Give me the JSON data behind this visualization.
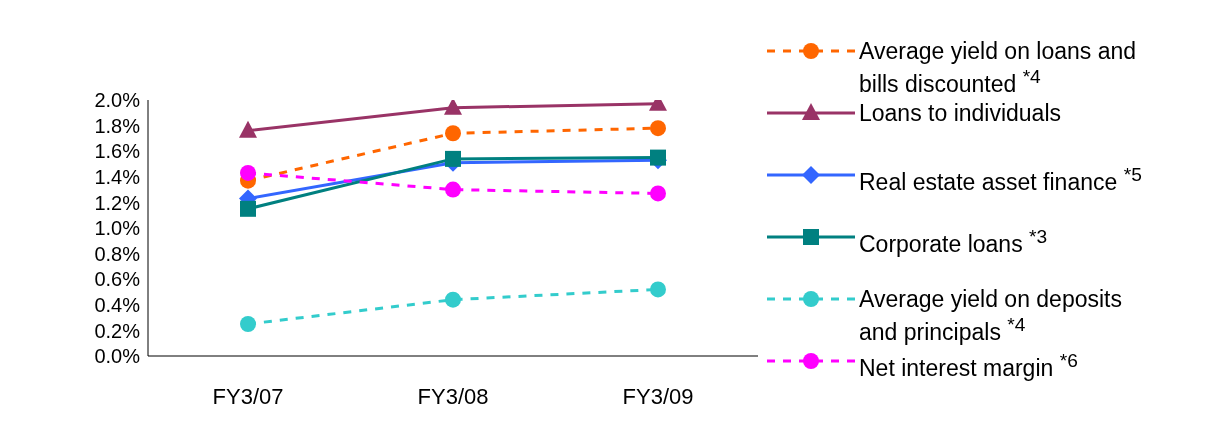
{
  "chart_data": {
    "type": "line",
    "categories": [
      "FY3/07",
      "FY3/08",
      "FY3/09"
    ],
    "ylim": [
      0,
      2
    ],
    "yticks": [
      {
        "value": 0,
        "label": "0.0%"
      },
      {
        "value": 0.2,
        "label": "0.2%"
      },
      {
        "value": 0.4,
        "label": "0.4%"
      },
      {
        "value": 0.6,
        "label": "0.6%"
      },
      {
        "value": 0.8,
        "label": "0.8%"
      },
      {
        "value": 1,
        "label": "1.0%"
      },
      {
        "value": 1.2,
        "label": "1.2%"
      },
      {
        "value": 1.4,
        "label": "1.4%"
      },
      {
        "value": 1.6,
        "label": "1.6%"
      },
      {
        "value": 1.8,
        "label": "1.8%"
      },
      {
        "value": 2,
        "label": "2.0%"
      }
    ],
    "legend": "right",
    "series": [
      {
        "name": "Average yield on loans and bills discounted $^{*4}$",
        "color": "#ff6600",
        "marker": "circle",
        "line_style": "dashed",
        "values": [
          1.37,
          1.74,
          1.78
        ]
      },
      {
        "name": "Loans to individuals",
        "color": "#993366",
        "marker": "triangle",
        "line_style": "solid",
        "values": [
          1.76,
          1.94,
          1.97
        ]
      },
      {
        "name": "Real estate asset finance $^{*5}$",
        "color": "#3366ff",
        "marker": "diamond",
        "line_style": "solid",
        "values": [
          1.23,
          1.51,
          1.53
        ]
      },
      {
        "name": "Corporate loans $^{*3}$",
        "color": "#008080",
        "marker": "square",
        "line_style": "solid",
        "values": [
          1.15,
          1.54,
          1.55
        ]
      },
      {
        "name": "Average yield on deposits and principals $^{*4}$",
        "color": "#33cccc",
        "marker": "circle",
        "line_style": "dashed",
        "values": [
          0.25,
          0.44,
          0.52
        ]
      },
      {
        "name": "Net interest margin $^{*6}$",
        "color": "#ff00ff",
        "marker": "circle",
        "line_style": "dashed",
        "values": [
          1.43,
          1.3,
          1.27
        ]
      }
    ]
  }
}
